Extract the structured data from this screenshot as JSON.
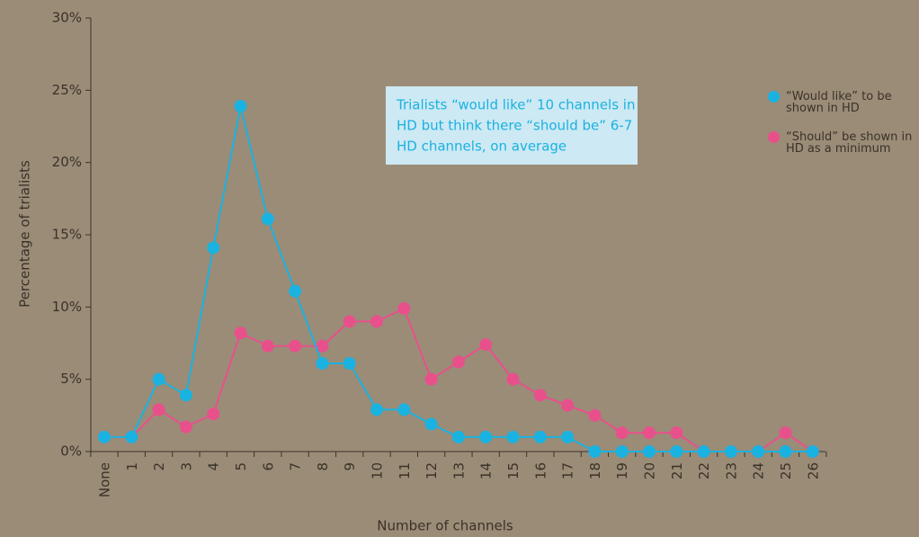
{
  "chart_data": {
    "type": "line",
    "y_label": "Percentage of trialists",
    "x_label": "Number of channels",
    "annotation": [
      "Trialists “would like” 10 channels in",
      "HD but think there “should be” 6-7",
      "HD channels, on average"
    ],
    "categories": [
      "None",
      "1",
      "2",
      "3",
      "4",
      "5",
      "6",
      "7",
      "8",
      "9",
      "10",
      "11",
      "12",
      "13",
      "14",
      "15",
      "16",
      "17",
      "18",
      "19",
      "20",
      "21",
      "22",
      "23",
      "24",
      "25",
      "26"
    ],
    "series": [
      {
        "name": "“Should” be shown in HD as a minimum",
        "color": "#e8508c",
        "values": [
          1.0,
          1.0,
          2.9,
          1.7,
          2.6,
          8.2,
          7.3,
          7.3,
          7.3,
          9.0,
          9.0,
          9.9,
          5.0,
          6.2,
          7.4,
          5.0,
          3.9,
          3.2,
          2.5,
          1.3,
          1.3,
          1.3,
          0,
          0,
          0,
          1.3,
          0
        ]
      },
      {
        "name": "“Would like” to be shown in HD",
        "color": "#1ab2e0",
        "values": [
          1.0,
          1.0,
          5.0,
          3.9,
          14.1,
          23.9,
          16.1,
          11.1,
          6.1,
          6.1,
          2.9,
          2.9,
          1.9,
          1.0,
          1.0,
          1.0,
          1.0,
          1.0,
          0,
          0,
          0,
          0,
          0,
          0,
          0,
          0,
          0
        ]
      }
    ],
    "ylim": [
      0,
      30
    ],
    "yticks": [
      {
        "value": 0,
        "label": "0%"
      },
      {
        "value": 5,
        "label": "5%"
      },
      {
        "value": 10,
        "label": "10%"
      },
      {
        "value": 15,
        "label": "15%"
      },
      {
        "value": 20,
        "label": "20%"
      },
      {
        "value": 25,
        "label": "25%"
      },
      {
        "value": 30,
        "label": "30%"
      }
    ]
  }
}
